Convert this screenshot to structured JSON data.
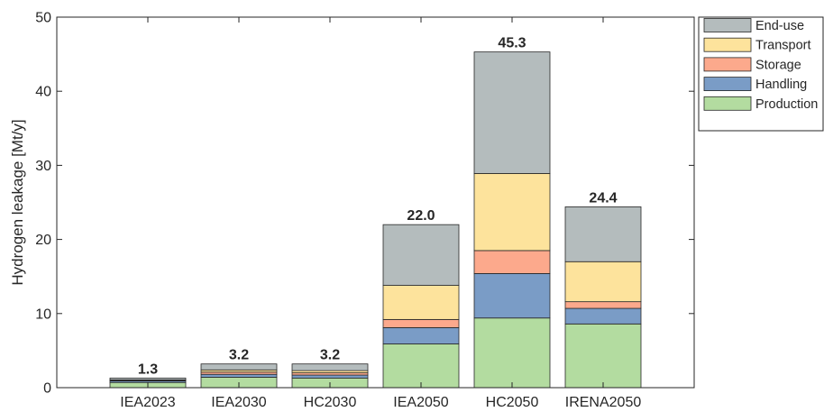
{
  "chart_data": {
    "type": "bar",
    "stacked": true,
    "categories": [
      "IEA2023",
      "IEA2030",
      "HC2030",
      "IEA2050",
      "HC2050",
      "IRENA2050"
    ],
    "ylabel": "Hydrogen leakage [Mt/y]",
    "xlabel": "",
    "title": "",
    "ylim": [
      0,
      50
    ],
    "yticks": [
      0,
      10,
      20,
      30,
      40,
      50
    ],
    "grid": false,
    "legend_position": "top-right outside",
    "series": [
      {
        "name": "Production",
        "color": "#b3dca0",
        "values": [
          0.7,
          1.4,
          1.3,
          5.9,
          9.4,
          8.6
        ]
      },
      {
        "name": "Handling",
        "color": "#7a9cc6",
        "values": [
          0.2,
          0.4,
          0.4,
          2.2,
          6.0,
          2.1
        ]
      },
      {
        "name": "Storage",
        "color": "#fca98c",
        "values": [
          0.1,
          0.3,
          0.3,
          1.1,
          3.1,
          0.9
        ]
      },
      {
        "name": "Transport",
        "color": "#fde39c",
        "values": [
          0.05,
          0.3,
          0.3,
          4.6,
          10.4,
          5.4
        ]
      },
      {
        "name": "End-use",
        "color": "#b4bcbd",
        "values": [
          0.25,
          0.8,
          0.9,
          8.2,
          16.4,
          7.4
        ]
      }
    ],
    "totals": [
      "1.3",
      "3.2",
      "3.2",
      "22.0",
      "45.3",
      "24.4"
    ],
    "legend_order": [
      "End-use",
      "Transport",
      "Storage",
      "Handling",
      "Production"
    ]
  }
}
